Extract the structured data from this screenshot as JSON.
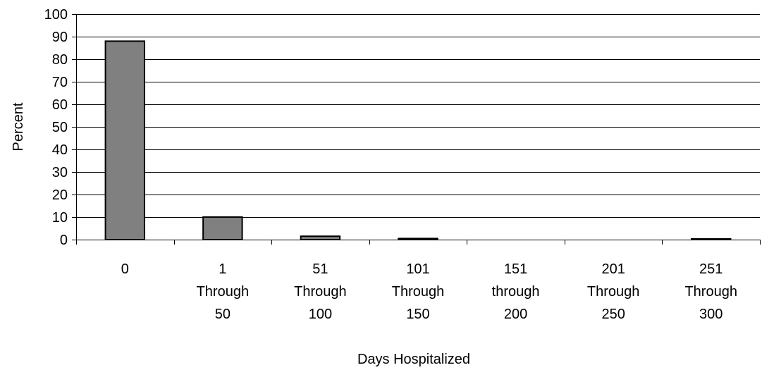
{
  "chart_data": {
    "type": "bar",
    "categories": [
      [
        "0"
      ],
      [
        "1",
        "Through",
        "50"
      ],
      [
        "51",
        "Through",
        "100"
      ],
      [
        "101",
        "Through",
        "150"
      ],
      [
        "151",
        "through",
        "200"
      ],
      [
        "201",
        "Through",
        "250"
      ],
      [
        "251",
        "Through",
        "300"
      ]
    ],
    "values": [
      88,
      10,
      1.5,
      0.5,
      0,
      0,
      0.3
    ],
    "title": "",
    "xlabel": "Days Hospitalized",
    "ylabel": "Percent",
    "ylim": [
      0,
      100
    ],
    "yticks": [
      0,
      10,
      20,
      30,
      40,
      50,
      60,
      70,
      80,
      90,
      100
    ],
    "grid": true,
    "bar_color": "#808080",
    "bar_edge_color": "#000000"
  }
}
